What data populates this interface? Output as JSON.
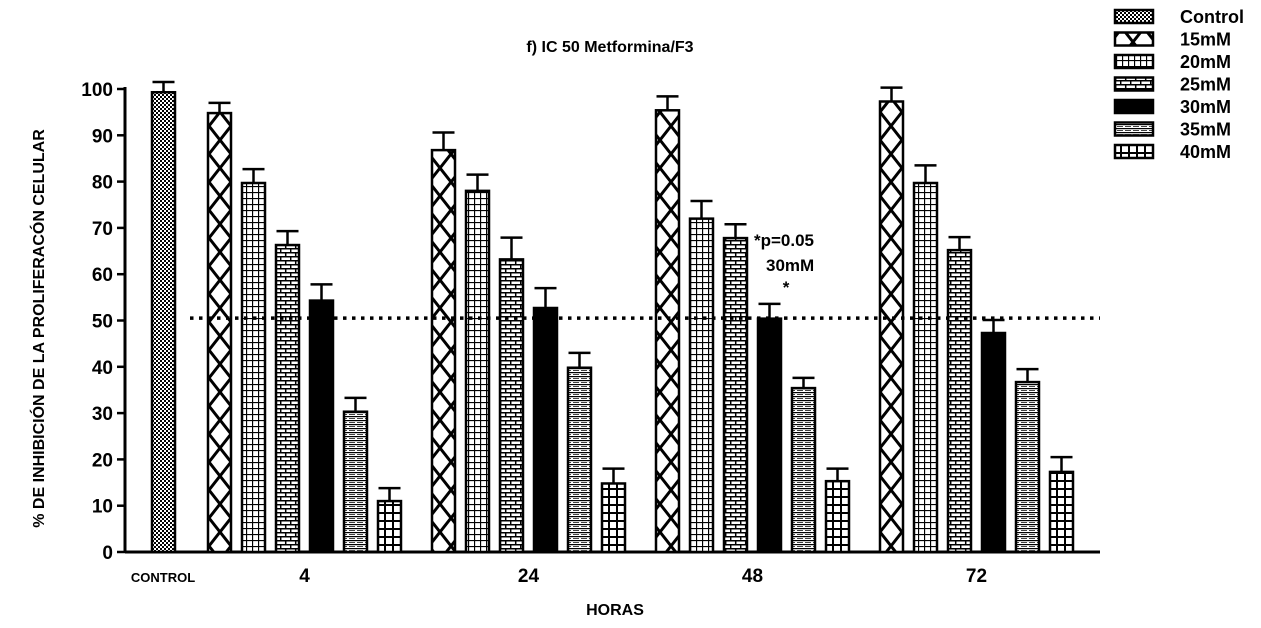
{
  "chart_data": {
    "type": "bar",
    "title": "f) IC 50 Metformina/F3",
    "xlabel": "HORAS",
    "ylabel": "% DE INHIBICIÓN DE LA PROLIFERACÓN CELULAR",
    "ylim": [
      0,
      100
    ],
    "yticks": [
      0,
      10,
      20,
      30,
      40,
      50,
      60,
      70,
      80,
      90,
      100
    ],
    "categories": [
      "CONTROL",
      "4",
      "24",
      "48",
      "72"
    ],
    "reference_line": 50.5,
    "legend_position": "top-right",
    "series": [
      {
        "name": "Control",
        "values": [
          99.3,
          null,
          null,
          null,
          null
        ],
        "errors": [
          2.2,
          null,
          null,
          null,
          null
        ]
      },
      {
        "name": "15mM",
        "values": [
          null,
          94.8,
          86.8,
          95.4,
          97.3
        ],
        "errors": [
          null,
          2.2,
          3.8,
          3.0,
          3.0
        ]
      },
      {
        "name": "20mM",
        "values": [
          null,
          79.7,
          78.0,
          72.0,
          79.7
        ],
        "errors": [
          null,
          3.0,
          3.5,
          3.8,
          3.8
        ]
      },
      {
        "name": "25mM",
        "values": [
          null,
          66.3,
          63.2,
          67.8,
          65.2
        ],
        "errors": [
          null,
          3.0,
          4.7,
          3.0,
          2.8
        ]
      },
      {
        "name": "30mM",
        "values": [
          null,
          54.3,
          52.7,
          50.4,
          47.3
        ],
        "errors": [
          null,
          3.5,
          4.3,
          3.2,
          2.8
        ]
      },
      {
        "name": "35mM",
        "values": [
          null,
          30.3,
          39.8,
          35.4,
          36.7
        ],
        "errors": [
          null,
          3.0,
          3.2,
          2.2,
          2.8
        ]
      },
      {
        "name": "40mM",
        "values": [
          null,
          11.0,
          14.8,
          15.3,
          17.3
        ],
        "errors": [
          null,
          2.8,
          3.2,
          2.7,
          3.2
        ]
      }
    ],
    "annotations": [
      {
        "text": "*p=0.05",
        "category": "48",
        "series": "30mM"
      },
      {
        "text": "30mM",
        "category": "48",
        "series": "30mM"
      },
      {
        "text": "*",
        "category": "48",
        "series": "30mM"
      }
    ]
  }
}
